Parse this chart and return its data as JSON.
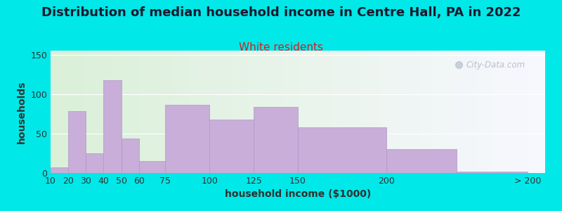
{
  "title": "Distribution of median household income in Centre Hall, PA in 2022",
  "subtitle": "White residents",
  "xlabel": "household income ($1000)",
  "ylabel": "households",
  "bar_color": "#c8aed8",
  "bar_edge_color": "#b098c8",
  "background_outer": "#00e8e8",
  "background_inner_left": "#daf0d8",
  "background_inner_right": "#f8f8ff",
  "categories": [
    "10",
    "20",
    "30",
    "40",
    "50",
    "60",
    "75",
    "100",
    "125",
    "150",
    "200",
    "> 200"
  ],
  "values": [
    7,
    78,
    25,
    118,
    44,
    15,
    86,
    68,
    84,
    58,
    30,
    2
  ],
  "yticks": [
    0,
    50,
    100,
    150
  ],
  "ylim": [
    0,
    155
  ],
  "title_fontsize": 13,
  "subtitle_fontsize": 11,
  "subtitle_color": "#cc2222",
  "axis_label_fontsize": 10,
  "tick_fontsize": 9,
  "watermark": "City-Data.com",
  "x_starts": [
    10,
    20,
    30,
    40,
    50,
    60,
    75,
    100,
    125,
    150,
    200,
    240
  ],
  "x_widths": [
    10,
    10,
    10,
    10,
    10,
    15,
    25,
    25,
    25,
    50,
    40,
    40
  ],
  "xtick_pos": [
    10,
    20,
    30,
    40,
    50,
    60,
    75,
    100,
    125,
    150,
    200,
    280
  ],
  "xtick_labels": [
    "10",
    "20",
    "30",
    "40",
    "50",
    "60",
    "75",
    "100",
    "125",
    "150",
    "200",
    "> 200"
  ],
  "xlim": [
    10,
    290
  ]
}
